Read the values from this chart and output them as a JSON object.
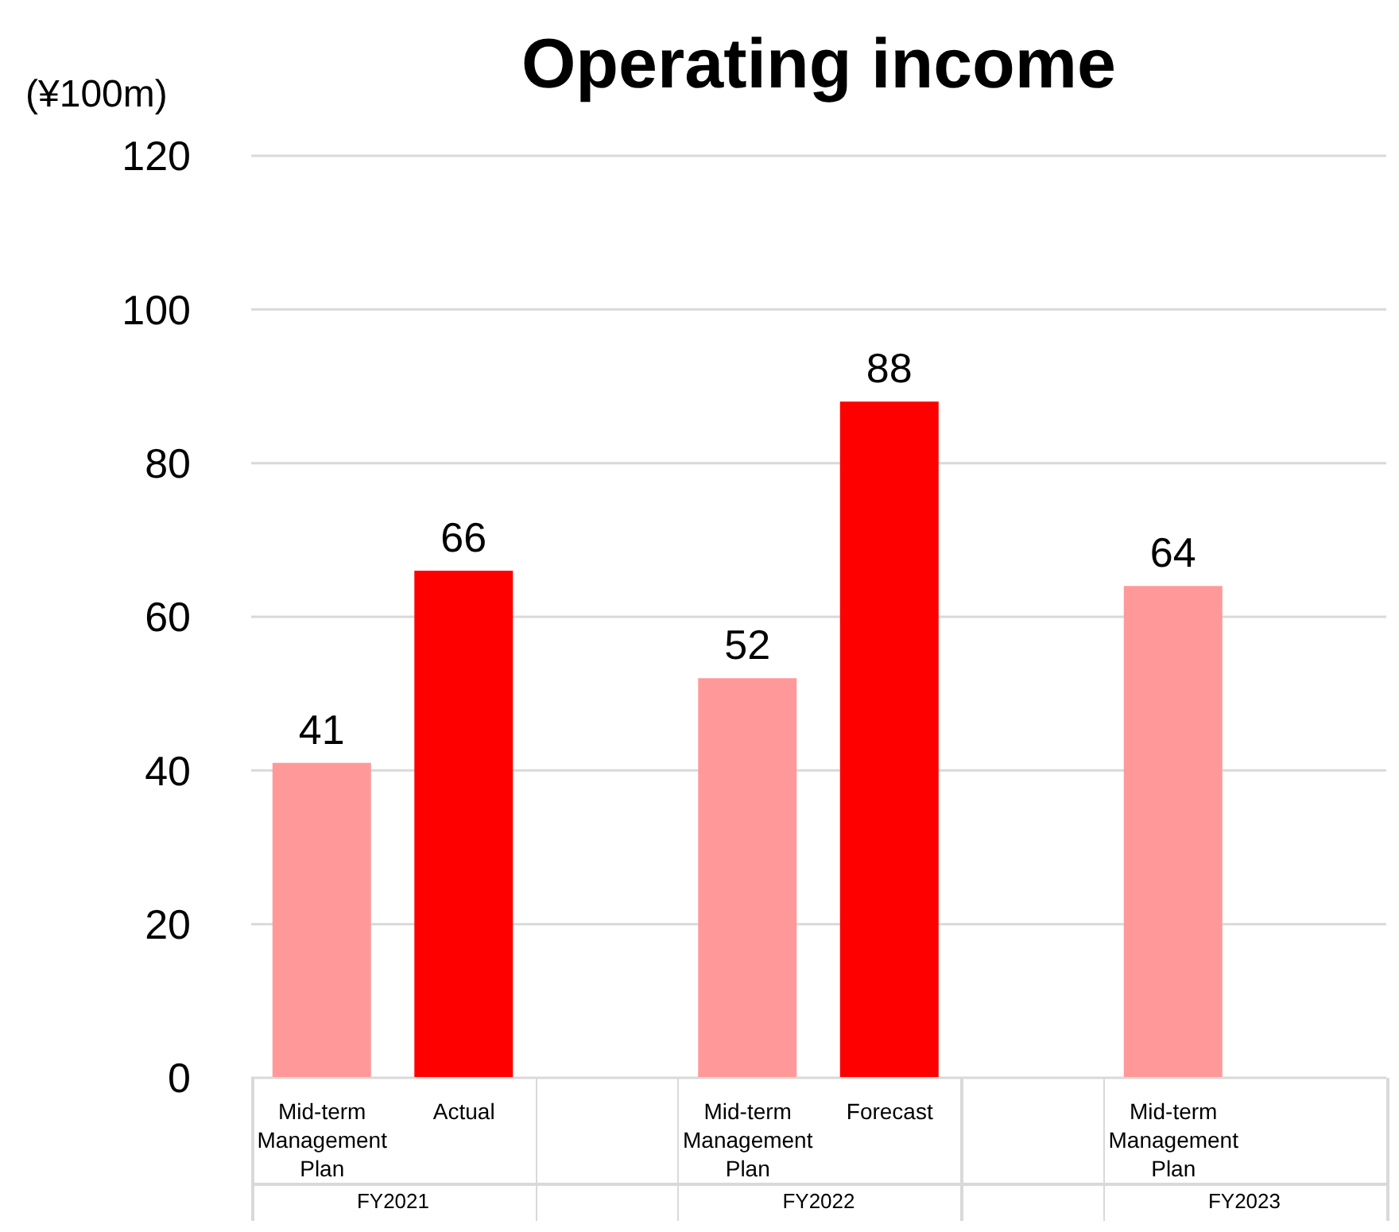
{
  "chart_data": {
    "type": "bar",
    "title": "Operating income",
    "ylabel": "(¥100m)",
    "categories": [
      "Mid-term Management Plan",
      "Actual",
      null,
      "Mid-term Management Plan",
      "Forecast",
      null,
      "Mid-term Management Plan",
      null
    ],
    "values": [
      41,
      66,
      null,
      52,
      88,
      null,
      64,
      null
    ],
    "colors": [
      "#ff9999",
      "#ff0000",
      "#ff9999",
      "#ff9999",
      "#ff0000",
      "#ff9999",
      "#ff9999",
      "#ff9999"
    ],
    "ylim": [
      0,
      120
    ],
    "yticks": [
      0,
      20,
      40,
      60,
      80,
      100,
      120
    ],
    "grid": "y",
    "data_labels": true,
    "legend": false,
    "annotations": [
      "FY2021",
      "FY2022",
      "FY2023"
    ]
  }
}
